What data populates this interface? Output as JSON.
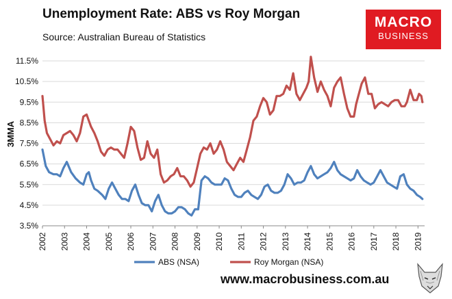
{
  "chart_data": {
    "type": "line",
    "title": "Unemployment Rate: ABS vs Roy Morgan",
    "subtitle": "Source: Australian Bureau of Statistics",
    "ylabel": "3MMA",
    "xlabel": "",
    "ylim": [
      3.5,
      12.0
    ],
    "xlim": [
      2002.0,
      2019.3
    ],
    "y_ticks": [
      "3.5%",
      "4.5%",
      "5.5%",
      "6.5%",
      "7.5%",
      "8.5%",
      "9.5%",
      "10.5%",
      "11.5%"
    ],
    "y_tick_values": [
      3.5,
      4.5,
      5.5,
      6.5,
      7.5,
      8.5,
      9.5,
      10.5,
      11.5
    ],
    "x_ticks": [
      "2002",
      "2003",
      "2004",
      "2005",
      "2006",
      "2007",
      "2008",
      "2009",
      "2010",
      "2011",
      "2012",
      "2013",
      "2014",
      "2015",
      "2016",
      "2017",
      "2018",
      "2019"
    ],
    "x_tick_values": [
      2002,
      2003,
      2004,
      2005,
      2006,
      2007,
      2008,
      2009,
      2010,
      2011,
      2012,
      2013,
      2014,
      2015,
      2016,
      2017,
      2018,
      2019
    ],
    "legend_position": "bottom",
    "series": [
      {
        "name": "ABS (NSA)",
        "color": "#4f81bd",
        "x": [
          2002.0,
          2002.15,
          2002.3,
          2002.5,
          2002.65,
          2002.8,
          2002.95,
          2003.1,
          2003.3,
          2003.5,
          2003.7,
          2003.85,
          2004.0,
          2004.1,
          2004.2,
          2004.35,
          2004.5,
          2004.7,
          2004.85,
          2005.0,
          2005.15,
          2005.3,
          2005.45,
          2005.6,
          2005.75,
          2005.9,
          2006.05,
          2006.2,
          2006.35,
          2006.5,
          2006.65,
          2006.8,
          2006.95,
          2007.1,
          2007.25,
          2007.4,
          2007.55,
          2007.7,
          2007.85,
          2008.0,
          2008.15,
          2008.3,
          2008.45,
          2008.6,
          2008.75,
          2008.9,
          2009.05,
          2009.2,
          2009.35,
          2009.5,
          2009.65,
          2009.8,
          2009.95,
          2010.1,
          2010.25,
          2010.4,
          2010.55,
          2010.7,
          2010.85,
          2011.0,
          2011.15,
          2011.3,
          2011.45,
          2011.6,
          2011.75,
          2011.9,
          2012.05,
          2012.2,
          2012.35,
          2012.5,
          2012.65,
          2012.8,
          2012.95,
          2013.1,
          2013.25,
          2013.4,
          2013.55,
          2013.7,
          2013.85,
          2014.0,
          2014.15,
          2014.3,
          2014.45,
          2014.6,
          2014.75,
          2014.9,
          2015.05,
          2015.2,
          2015.35,
          2015.5,
          2015.65,
          2015.8,
          2015.95,
          2016.1,
          2016.25,
          2016.4,
          2016.55,
          2016.7,
          2016.85,
          2017.0,
          2017.15,
          2017.3,
          2017.45,
          2017.6,
          2017.75,
          2017.9,
          2018.05,
          2018.2,
          2018.35,
          2018.5,
          2018.65,
          2018.8,
          2018.95,
          2019.1,
          2019.2
        ],
        "values": [
          7.2,
          6.4,
          6.1,
          6.0,
          6.0,
          5.9,
          6.3,
          6.6,
          6.1,
          5.8,
          5.6,
          5.5,
          6.0,
          6.1,
          5.7,
          5.3,
          5.2,
          5.0,
          4.8,
          5.3,
          5.6,
          5.3,
          5.0,
          4.8,
          4.8,
          4.7,
          5.2,
          5.5,
          5.0,
          4.6,
          4.5,
          4.5,
          4.2,
          4.7,
          5.0,
          4.5,
          4.2,
          4.1,
          4.1,
          4.2,
          4.4,
          4.4,
          4.3,
          4.1,
          4.0,
          4.3,
          4.3,
          5.7,
          5.9,
          5.8,
          5.6,
          5.5,
          5.5,
          5.5,
          5.8,
          5.7,
          5.3,
          5.0,
          4.9,
          4.9,
          5.1,
          5.2,
          5.0,
          4.9,
          4.8,
          5.0,
          5.4,
          5.5,
          5.2,
          5.1,
          5.1,
          5.2,
          5.5,
          6.0,
          5.8,
          5.5,
          5.6,
          5.6,
          5.7,
          6.1,
          6.4,
          6.0,
          5.8,
          5.9,
          6.0,
          6.1,
          6.3,
          6.6,
          6.2,
          6.0,
          5.9,
          5.8,
          5.7,
          5.8,
          6.2,
          5.9,
          5.7,
          5.6,
          5.5,
          5.6,
          5.9,
          6.2,
          5.9,
          5.6,
          5.5,
          5.4,
          5.3,
          5.9,
          6.0,
          5.5,
          5.3,
          5.2,
          5.0,
          4.9,
          4.8
        ]
      },
      {
        "name": "Roy Morgan (NSA)",
        "color": "#c0504d",
        "x": [
          2002.0,
          2002.1,
          2002.2,
          2002.35,
          2002.5,
          2002.65,
          2002.8,
          2002.95,
          2003.1,
          2003.25,
          2003.4,
          2003.55,
          2003.7,
          2003.85,
          2004.0,
          2004.1,
          2004.2,
          2004.35,
          2004.5,
          2004.65,
          2004.8,
          2004.95,
          2005.1,
          2005.25,
          2005.4,
          2005.55,
          2005.7,
          2005.85,
          2006.0,
          2006.15,
          2006.3,
          2006.45,
          2006.6,
          2006.75,
          2006.9,
          2007.05,
          2007.2,
          2007.35,
          2007.5,
          2007.65,
          2007.8,
          2007.95,
          2008.1,
          2008.25,
          2008.4,
          2008.55,
          2008.7,
          2008.85,
          2009.0,
          2009.15,
          2009.3,
          2009.45,
          2009.6,
          2009.75,
          2009.9,
          2010.05,
          2010.2,
          2010.35,
          2010.5,
          2010.65,
          2010.8,
          2010.95,
          2011.1,
          2011.25,
          2011.4,
          2011.55,
          2011.7,
          2011.85,
          2012.0,
          2012.15,
          2012.3,
          2012.45,
          2012.6,
          2012.75,
          2012.9,
          2013.05,
          2013.2,
          2013.35,
          2013.5,
          2013.65,
          2013.8,
          2013.95,
          2014.05,
          2014.15,
          2014.3,
          2014.45,
          2014.6,
          2014.75,
          2014.9,
          2015.05,
          2015.2,
          2015.35,
          2015.5,
          2015.65,
          2015.8,
          2015.95,
          2016.1,
          2016.2,
          2016.3,
          2016.45,
          2016.6,
          2016.75,
          2016.9,
          2017.05,
          2017.2,
          2017.35,
          2017.5,
          2017.65,
          2017.8,
          2017.95,
          2018.1,
          2018.25,
          2018.4,
          2018.5,
          2018.65,
          2018.8,
          2018.95,
          2019.05,
          2019.15,
          2019.2
        ],
        "values": [
          9.8,
          8.6,
          8.0,
          7.7,
          7.4,
          7.6,
          7.5,
          7.9,
          8.0,
          8.1,
          7.9,
          7.6,
          8.0,
          8.8,
          8.9,
          8.6,
          8.3,
          8.0,
          7.6,
          7.1,
          6.9,
          7.2,
          7.3,
          7.2,
          7.2,
          7.0,
          6.8,
          7.5,
          8.3,
          8.1,
          7.3,
          6.7,
          6.8,
          7.6,
          7.0,
          6.8,
          7.2,
          6.0,
          5.6,
          5.7,
          5.9,
          6.0,
          6.3,
          5.9,
          5.9,
          5.7,
          5.4,
          5.6,
          6.3,
          7.0,
          7.3,
          7.2,
          7.5,
          7.0,
          7.2,
          7.6,
          7.2,
          6.6,
          6.4,
          6.2,
          6.5,
          6.8,
          6.6,
          7.2,
          7.8,
          8.6,
          8.8,
          9.3,
          9.7,
          9.5,
          8.9,
          9.1,
          9.8,
          9.8,
          9.9,
          10.3,
          10.1,
          10.9,
          9.9,
          9.6,
          9.9,
          10.2,
          10.5,
          11.7,
          10.7,
          10.0,
          10.5,
          10.1,
          9.8,
          9.3,
          10.2,
          10.5,
          10.7,
          9.9,
          9.2,
          8.8,
          8.8,
          9.4,
          9.8,
          10.4,
          10.7,
          9.9,
          9.9,
          9.2,
          9.4,
          9.5,
          9.4,
          9.3,
          9.5,
          9.6,
          9.6,
          9.3,
          9.3,
          9.5,
          10.1,
          9.6,
          9.6,
          9.9,
          9.8,
          9.5
        ]
      }
    ]
  },
  "logo": {
    "line1": "MACRO",
    "line2": "BUSINESS"
  },
  "footer": {
    "url": "www.macrobusiness.com.au"
  },
  "colors": {
    "brand_red": "#e01b22"
  }
}
